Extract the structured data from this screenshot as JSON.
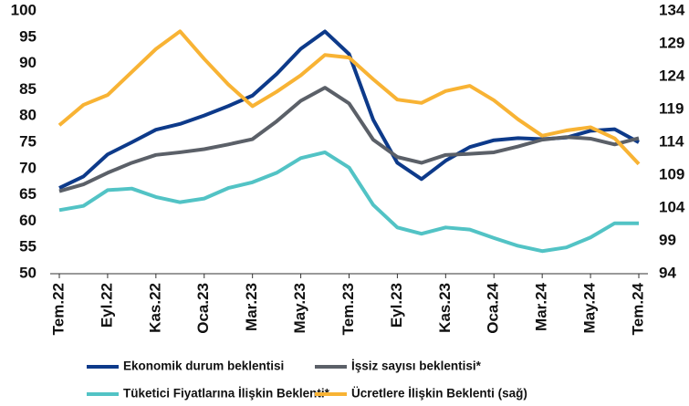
{
  "chart_data": {
    "type": "line",
    "categories": [
      "Tem.22",
      null,
      "Eyl.22",
      null,
      "Kas.22",
      null,
      "Oca.23",
      null,
      "Mar.23",
      null,
      "May.23",
      null,
      "Tem.23",
      null,
      "Eyl.23",
      null,
      "Kas.23",
      null,
      "Oca.24",
      null,
      "Mar.24",
      null,
      "May.24",
      null,
      "Tem.24"
    ],
    "series": [
      {
        "name": "Ekonomik durum beklentisi",
        "color": "#0d3a8a",
        "values": [
          66.3,
          68.5,
          72.7,
          75,
          77.4,
          78.5,
          80.1,
          81.9,
          83.9,
          88,
          92.8,
          96.1,
          91.8,
          79.3,
          71.1,
          68,
          71.5,
          74.1,
          75.4,
          75.8,
          75.6,
          75.9,
          77.2,
          77.5,
          75
        ]
      },
      {
        "name": "İşsiz sayısı beklentisi*",
        "color": "#5b6068",
        "values": [
          65.7,
          67,
          69.2,
          71.1,
          72.6,
          73.1,
          73.7,
          74.6,
          75.6,
          79,
          82.9,
          85.4,
          82.4,
          75.5,
          72.2,
          71.1,
          72.6,
          72.8,
          73.1,
          74.2,
          75.5,
          76,
          75.7,
          74.6,
          75.8
        ]
      },
      {
        "name": "Tüketici Fiyatlarına İlişkin Beklenti*",
        "color": "#52c3c5",
        "values": [
          62.1,
          62.9,
          65.9,
          66.2,
          64.6,
          63.6,
          64.3,
          66.3,
          67.4,
          69.2,
          72,
          73.1,
          70.2,
          63.1,
          58.8,
          57.6,
          58.8,
          58.4,
          56.8,
          55.3,
          54.3,
          55,
          56.9,
          59.6,
          59.6
        ]
      },
      {
        "name": "Ücretlere İlişkin Beklenti (sağ)",
        "color": "#f8b334",
        "axis": "y2",
        "values": [
          116.6,
          119.7,
          121.2,
          124.7,
          128.2,
          130.9,
          126.7,
          122.8,
          119.5,
          121.7,
          124.2,
          127.3,
          126.9,
          123.6,
          120.5,
          120,
          121.8,
          122.6,
          120.4,
          117.5,
          115,
          115.8,
          116.3,
          114.6,
          110.7
        ]
      }
    ],
    "ylim": [
      50,
      100
    ],
    "yticks": [
      50,
      55,
      60,
      65,
      70,
      75,
      80,
      85,
      90,
      95,
      100
    ],
    "y2lim": [
      94,
      134
    ],
    "y2ticks": [
      94,
      99,
      104,
      109,
      114,
      119,
      124,
      129,
      134
    ]
  }
}
